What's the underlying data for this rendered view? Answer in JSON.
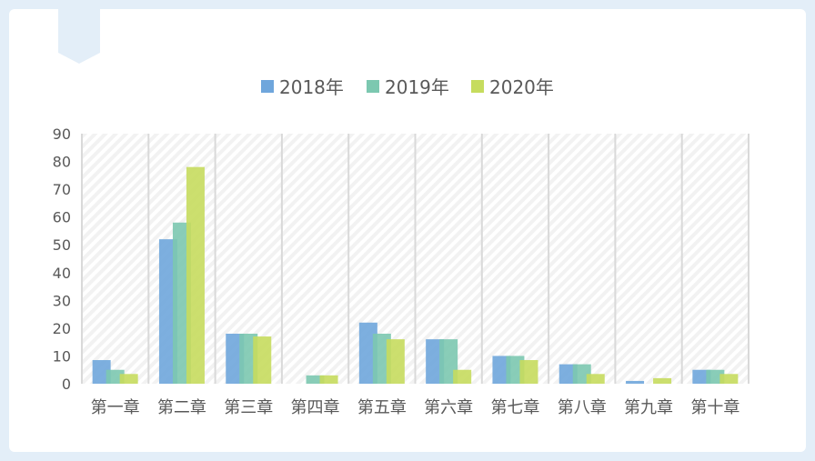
{
  "colors": {
    "frame": "#e3eef8",
    "s2018": "#6fa6dc",
    "s2019": "#7cc8b0",
    "s2020": "#c6dc5e",
    "grid": "#d9d9d9",
    "text": "#595959"
  },
  "chart_data": {
    "type": "bar",
    "title": "",
    "xlabel": "",
    "ylabel": "",
    "categories": [
      "第一章",
      "第二章",
      "第三章",
      "第四章",
      "第五章",
      "第六章",
      "第七章",
      "第八章",
      "第九章",
      "第十章"
    ],
    "series": [
      {
        "name": "2018年",
        "values": [
          8.5,
          52,
          18,
          0,
          22,
          16,
          10,
          7,
          1,
          5
        ]
      },
      {
        "name": "2019年",
        "values": [
          5,
          58,
          18,
          3,
          18,
          16,
          10,
          7,
          0,
          5
        ]
      },
      {
        "name": "2020年",
        "values": [
          3.5,
          78,
          17,
          3,
          16,
          5,
          8.5,
          3.5,
          2,
          3.5
        ]
      }
    ],
    "ylim": [
      0,
      90
    ],
    "yticks": [
      "0",
      "10",
      "20",
      "30",
      "40",
      "50",
      "60",
      "70",
      "80",
      "90"
    ],
    "legend": "top",
    "grid": "vertical category separators"
  }
}
